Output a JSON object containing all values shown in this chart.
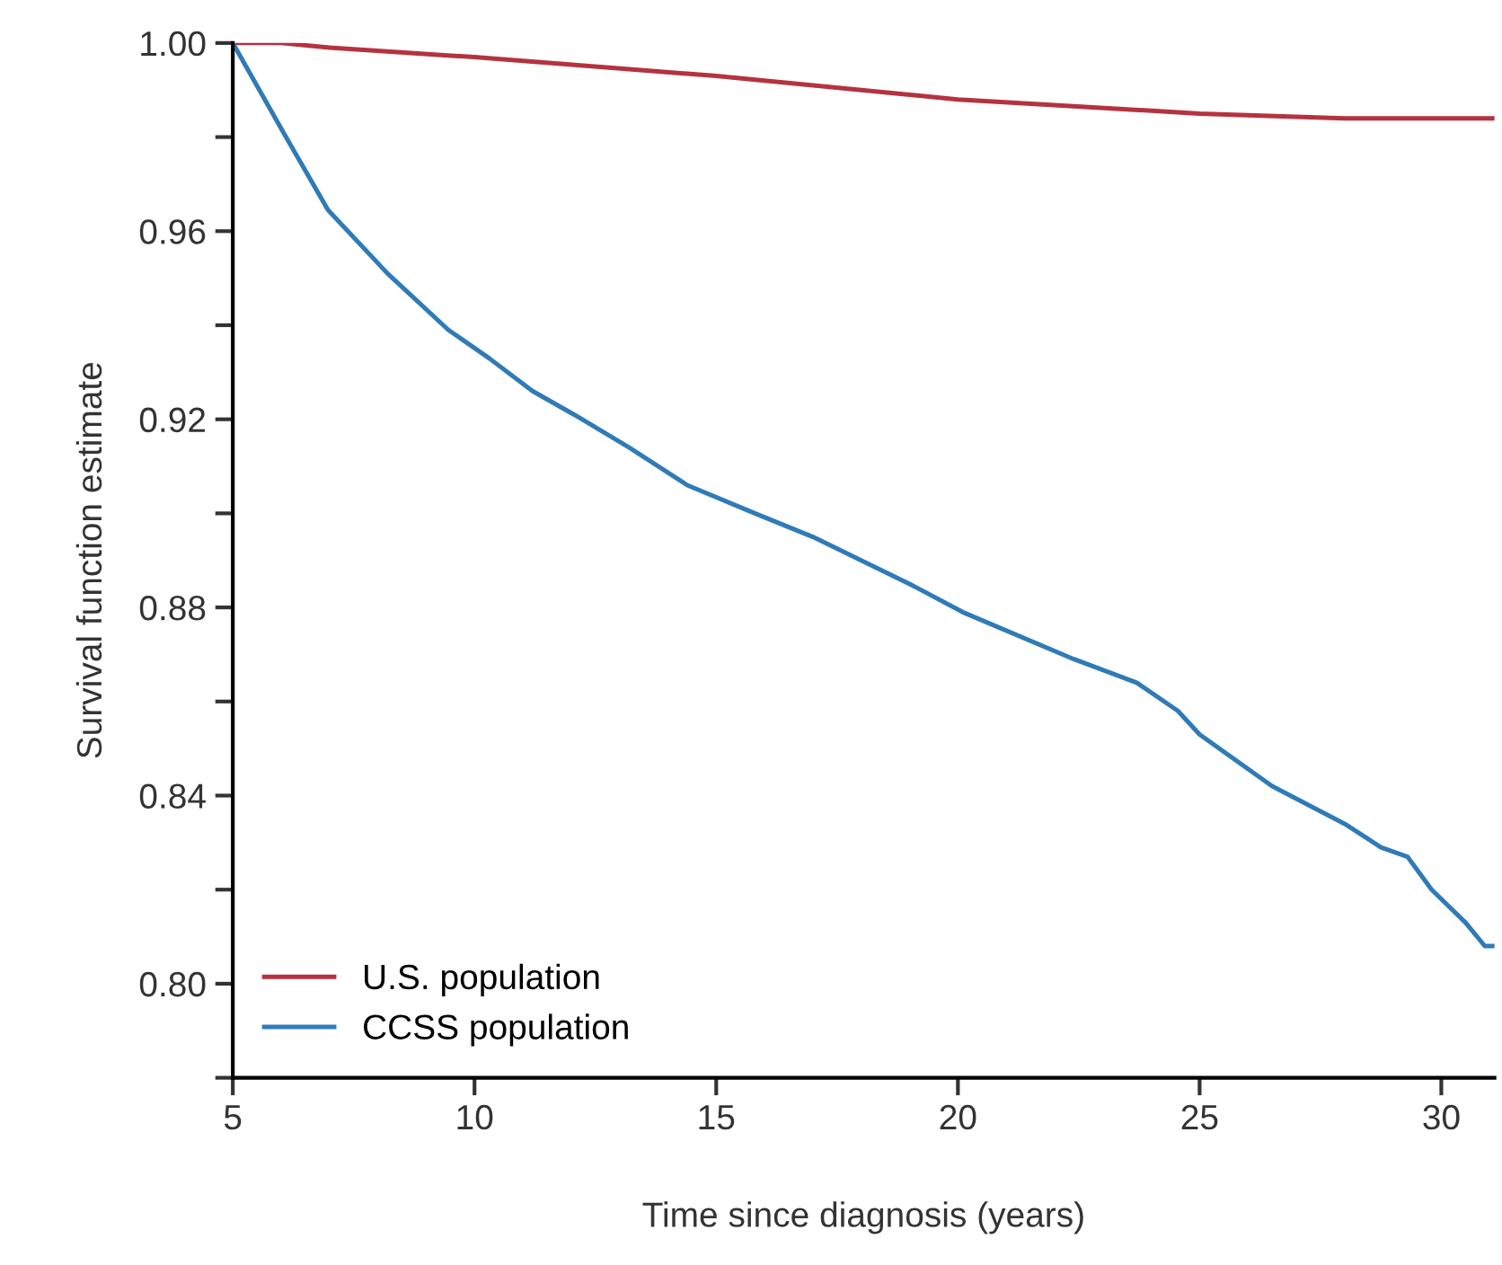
{
  "chart_data": {
    "type": "line",
    "xlabel": "Time since diagnosis (years)",
    "ylabel": "Survival function estimate",
    "xlim": [
      5,
      31.1
    ],
    "ylim": [
      0.78,
      1.0
    ],
    "xticks": [
      5,
      10,
      15,
      20,
      25,
      30
    ],
    "yticks": [
      {
        "value": 0.78,
        "label": null
      },
      {
        "value": 0.8,
        "label": "0.80"
      },
      {
        "value": 0.82,
        "label": null
      },
      {
        "value": 0.84,
        "label": "0.84"
      },
      {
        "value": 0.86,
        "label": null
      },
      {
        "value": 0.88,
        "label": "0.88"
      },
      {
        "value": 0.9,
        "label": null
      },
      {
        "value": 0.92,
        "label": "0.92"
      },
      {
        "value": 0.94,
        "label": null
      },
      {
        "value": 0.96,
        "label": "0.96"
      },
      {
        "value": 0.98,
        "label": null
      },
      {
        "value": 1.0,
        "label": "1.00"
      }
    ],
    "grid": false,
    "legend": "bottom left",
    "marker": "none",
    "line_style": "solid",
    "series": [
      {
        "name": "U.S. population",
        "color": "#b5323f",
        "x": [
          5,
          6,
          7,
          10,
          15,
          20,
          25,
          28,
          31.1
        ],
        "values": [
          1.0,
          1.0,
          0.999,
          0.997,
          0.993,
          0.988,
          0.985,
          0.984,
          0.984
        ]
      },
      {
        "name": "CCSS population",
        "color": "#2f7bb8",
        "x": [
          5,
          6.1,
          6.97,
          8.2,
          9.46,
          10.3,
          11.2,
          12.06,
          13.2,
          14.4,
          15.8,
          17,
          18,
          19,
          20.1,
          22.4,
          23.7,
          24.55,
          25.0,
          26.5,
          28.0,
          28.75,
          29.3,
          29.8,
          30.5,
          30.9,
          31.1
        ],
        "values": [
          1.0,
          0.98,
          0.9645,
          0.951,
          0.939,
          0.933,
          0.926,
          0.921,
          0.914,
          0.906,
          0.9,
          0.895,
          0.89,
          0.885,
          0.879,
          0.869,
          0.864,
          0.858,
          0.853,
          0.842,
          0.834,
          0.829,
          0.827,
          0.82,
          0.813,
          0.808,
          0.808
        ]
      }
    ]
  }
}
